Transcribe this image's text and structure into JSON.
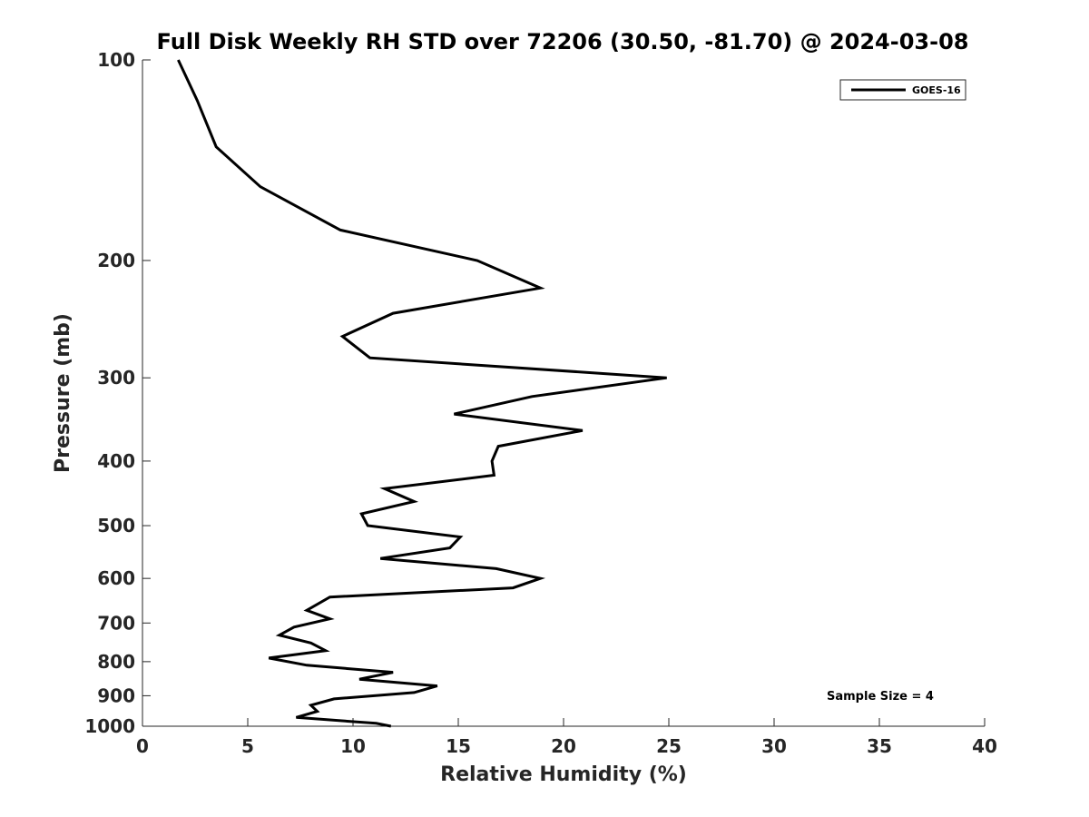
{
  "chart_data": {
    "type": "line",
    "title": "Full Disk Weekly RH STD over 72206 (30.50, -81.70) @ 2024-03-08",
    "xlabel": "Relative Humidity (%)",
    "ylabel": "Pressure (mb)",
    "xlim": [
      0,
      40
    ],
    "ylim": [
      100,
      1000
    ],
    "y_scale": "log",
    "y_reversed": true,
    "grid": false,
    "legend_position": "top-right",
    "x_ticks": [
      "0",
      "5",
      "10",
      "15",
      "20",
      "25",
      "30",
      "35",
      "40"
    ],
    "y_ticks": [
      "100",
      "200",
      "300",
      "400",
      "500",
      "600",
      "700",
      "800",
      "900",
      "1000"
    ],
    "annotation": "Sample Size = 4",
    "series": [
      {
        "name": "GOES-16",
        "color": "#000000",
        "points": [
          [
            1.7,
            100
          ],
          [
            2.6,
            115
          ],
          [
            3.5,
            135
          ],
          [
            5.6,
            155
          ],
          [
            9.4,
            180
          ],
          [
            15.9,
            200
          ],
          [
            18.9,
            220
          ],
          [
            11.9,
            240
          ],
          [
            9.5,
            260
          ],
          [
            10.8,
            280
          ],
          [
            24.9,
            300
          ],
          [
            18.5,
            320
          ],
          [
            14.8,
            340
          ],
          [
            20.9,
            360
          ],
          [
            16.9,
            380
          ],
          [
            16.6,
            400
          ],
          [
            16.7,
            420
          ],
          [
            11.5,
            440
          ],
          [
            12.9,
            460
          ],
          [
            10.4,
            480
          ],
          [
            10.7,
            500
          ],
          [
            15.1,
            520
          ],
          [
            14.6,
            540
          ],
          [
            11.3,
            560
          ],
          [
            16.8,
            580
          ],
          [
            18.9,
            600
          ],
          [
            17.6,
            620
          ],
          [
            8.9,
            640
          ],
          [
            7.8,
            670
          ],
          [
            8.9,
            690
          ],
          [
            7.2,
            710
          ],
          [
            6.5,
            730
          ],
          [
            8.0,
            750
          ],
          [
            8.7,
            770
          ],
          [
            6.0,
            790
          ],
          [
            7.8,
            810
          ],
          [
            11.9,
            830
          ],
          [
            10.3,
            850
          ],
          [
            14.0,
            870
          ],
          [
            12.9,
            890
          ],
          [
            9.1,
            910
          ],
          [
            8.0,
            930
          ],
          [
            8.3,
            950
          ],
          [
            7.3,
            970
          ],
          [
            11.1,
            990
          ],
          [
            11.8,
            1000
          ]
        ]
      }
    ]
  }
}
